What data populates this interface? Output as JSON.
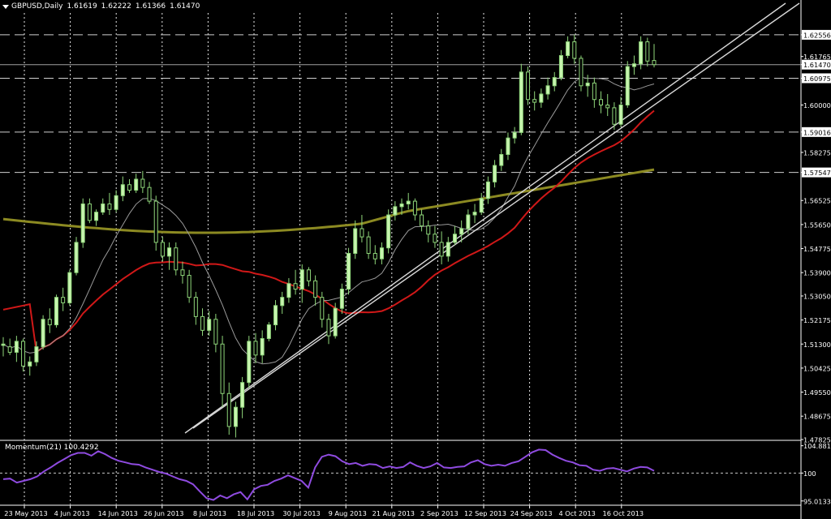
{
  "header": {
    "symbol": "GBPUSD,Daily",
    "open": "1.61619",
    "high": "1.62222",
    "low": "1.61366",
    "close": "1.61470"
  },
  "momentum_header": "Momentum(21) 100.4292",
  "colors": {
    "background": "#000000",
    "bull_candle": "#c8f5b0",
    "bear_candle": "#000000",
    "candle_outline": "#8fd67a",
    "wick": "#8fd67a",
    "ma_fast": "#9a9a9a",
    "ma_red": "#d01818",
    "ma_olive": "#8c8a22",
    "trendline": "#d8d8d8",
    "grid": "#ffffff",
    "momentum": "#8f4be0",
    "label_bg": "#ffffff",
    "label_text": "#000000"
  },
  "chart_data": {
    "type": "candlestick",
    "symbol": "GBPUSD",
    "timeframe": "Daily",
    "price_axis_ticks": [
      "1.62556",
      "1.61765",
      "1.61470",
      "1.60975",
      "1.60000",
      "1.59016",
      "1.58275",
      "1.57547",
      "1.56525",
      "1.55650",
      "1.54775",
      "1.53900",
      "1.53050",
      "1.52175",
      "1.51300",
      "1.50425",
      "1.49550",
      "1.48675",
      "1.47825"
    ],
    "highlight_labels": [
      "1.62556",
      "1.61470",
      "1.60975",
      "1.59016",
      "1.57547"
    ],
    "horizontal_levels": [
      1.62556,
      1.60975,
      1.59016,
      1.57547
    ],
    "current_price": 1.6147,
    "ylim": [
      1.47825,
      1.6335
    ],
    "x_axis_labels": [
      "23 May 2013",
      "4 Jun 2013",
      "14 Jun 2013",
      "26 Jun 2013",
      "8 Jul 2013",
      "18 Jul 2013",
      "30 Jul 2013",
      "9 Aug 2013",
      "21 Aug 2013",
      "2 Sep 2013",
      "12 Sep 2013",
      "24 Sep 2013",
      "4 Oct 2013",
      "16 Oct 2013"
    ],
    "candles": [
      [
        1.5125,
        1.5155,
        1.5085,
        1.513
      ],
      [
        1.512,
        1.515,
        1.509,
        1.51
      ],
      [
        1.51,
        1.516,
        1.5065,
        1.514
      ],
      [
        1.514,
        1.515,
        1.503,
        1.505
      ],
      [
        1.505,
        1.5085,
        1.5015,
        1.5065
      ],
      [
        1.5065,
        1.514,
        1.505,
        1.512
      ],
      [
        1.512,
        1.5235,
        1.511,
        1.522
      ],
      [
        1.522,
        1.526,
        1.517,
        1.52
      ],
      [
        1.52,
        1.531,
        1.519,
        1.53
      ],
      [
        1.53,
        1.5335,
        1.525,
        1.528
      ],
      [
        1.528,
        1.54,
        1.527,
        1.539
      ],
      [
        1.539,
        1.552,
        1.538,
        1.55
      ],
      [
        1.55,
        1.566,
        1.548,
        1.564
      ],
      [
        1.564,
        1.566,
        1.557,
        1.558
      ],
      [
        1.558,
        1.562,
        1.556,
        1.561
      ],
      [
        1.561,
        1.566,
        1.56,
        1.564
      ],
      [
        1.564,
        1.568,
        1.56,
        1.562
      ],
      [
        1.562,
        1.569,
        1.561,
        1.567
      ],
      [
        1.567,
        1.574,
        1.565,
        1.571
      ],
      [
        1.571,
        1.573,
        1.568,
        1.569
      ],
      [
        1.569,
        1.575,
        1.568,
        1.573
      ],
      [
        1.573,
        1.576,
        1.568,
        1.57
      ],
      [
        1.57,
        1.572,
        1.564,
        1.565
      ],
      [
        1.565,
        1.567,
        1.547,
        1.55
      ],
      [
        1.55,
        1.552,
        1.543,
        1.545
      ],
      [
        1.545,
        1.55,
        1.54,
        1.548
      ],
      [
        1.548,
        1.55,
        1.538,
        1.54
      ],
      [
        1.54,
        1.543,
        1.535,
        1.538
      ],
      [
        1.538,
        1.54,
        1.528,
        1.53
      ],
      [
        1.53,
        1.532,
        1.52,
        1.523
      ],
      [
        1.523,
        1.526,
        1.516,
        1.518
      ],
      [
        1.518,
        1.525,
        1.516,
        1.522
      ],
      [
        1.522,
        1.524,
        1.51,
        1.513
      ],
      [
        1.513,
        1.516,
        1.49,
        1.495
      ],
      [
        1.495,
        1.499,
        1.48,
        1.483
      ],
      [
        1.483,
        1.492,
        1.479,
        1.49
      ],
      [
        1.49,
        1.501,
        1.486,
        1.499
      ],
      [
        1.499,
        1.516,
        1.497,
        1.514
      ],
      [
        1.514,
        1.517,
        1.506,
        1.509
      ],
      [
        1.509,
        1.518,
        1.506,
        1.515
      ],
      [
        1.515,
        1.521,
        1.514,
        1.52
      ],
      [
        1.52,
        1.529,
        1.518,
        1.527
      ],
      [
        1.527,
        1.532,
        1.524,
        1.53
      ],
      [
        1.53,
        1.537,
        1.528,
        1.535
      ],
      [
        1.535,
        1.54,
        1.531,
        1.533
      ],
      [
        1.533,
        1.542,
        1.528,
        1.54
      ],
      [
        1.54,
        1.541,
        1.534,
        1.536
      ],
      [
        1.536,
        1.538,
        1.527,
        1.53
      ],
      [
        1.53,
        1.532,
        1.519,
        1.522
      ],
      [
        1.522,
        1.524,
        1.513,
        1.516
      ],
      [
        1.516,
        1.528,
        1.515,
        1.526
      ],
      [
        1.526,
        1.535,
        1.524,
        1.533
      ],
      [
        1.533,
        1.548,
        1.531,
        1.546
      ],
      [
        1.546,
        1.558,
        1.544,
        1.555
      ],
      [
        1.555,
        1.56,
        1.55,
        1.552
      ],
      [
        1.552,
        1.554,
        1.544,
        1.546
      ],
      [
        1.546,
        1.549,
        1.542,
        1.544
      ],
      [
        1.544,
        1.55,
        1.542,
        1.548
      ],
      [
        1.548,
        1.562,
        1.546,
        1.56
      ],
      [
        1.56,
        1.565,
        1.558,
        1.563
      ],
      [
        1.563,
        1.566,
        1.56,
        1.564
      ],
      [
        1.564,
        1.568,
        1.562,
        1.565
      ],
      [
        1.565,
        1.566,
        1.558,
        1.56
      ],
      [
        1.56,
        1.562,
        1.554,
        1.556
      ],
      [
        1.556,
        1.558,
        1.55,
        1.553
      ],
      [
        1.553,
        1.556,
        1.548,
        1.55
      ],
      [
        1.55,
        1.554,
        1.542,
        1.545
      ],
      [
        1.545,
        1.552,
        1.543,
        1.55
      ],
      [
        1.55,
        1.556,
        1.549,
        1.553
      ],
      [
        1.553,
        1.558,
        1.55,
        1.555
      ],
      [
        1.555,
        1.562,
        1.553,
        1.56
      ],
      [
        1.56,
        1.564,
        1.557,
        1.561
      ],
      [
        1.561,
        1.568,
        1.56,
        1.566
      ],
      [
        1.566,
        1.574,
        1.564,
        1.572
      ],
      [
        1.572,
        1.58,
        1.57,
        1.578
      ],
      [
        1.578,
        1.584,
        1.576,
        1.582
      ],
      [
        1.582,
        1.59,
        1.58,
        1.588
      ],
      [
        1.588,
        1.592,
        1.586,
        1.59
      ],
      [
        1.59,
        1.615,
        1.589,
        1.612
      ],
      [
        1.612,
        1.614,
        1.6,
        1.602
      ],
      [
        1.602,
        1.605,
        1.598,
        1.601
      ],
      [
        1.601,
        1.606,
        1.599,
        1.604
      ],
      [
        1.604,
        1.61,
        1.602,
        1.607
      ],
      [
        1.607,
        1.612,
        1.605,
        1.61
      ],
      [
        1.61,
        1.62,
        1.609,
        1.618
      ],
      [
        1.618,
        1.625,
        1.617,
        1.623
      ],
      [
        1.623,
        1.6256,
        1.615,
        1.617
      ],
      [
        1.617,
        1.618,
        1.605,
        1.607
      ],
      [
        1.607,
        1.611,
        1.603,
        1.608
      ],
      [
        1.608,
        1.61,
        1.599,
        1.602
      ],
      [
        1.602,
        1.605,
        1.597,
        1.6
      ],
      [
        1.6,
        1.604,
        1.596,
        1.599
      ],
      [
        1.599,
        1.601,
        1.591,
        1.593
      ],
      [
        1.593,
        1.603,
        1.592,
        1.6
      ],
      [
        1.6,
        1.616,
        1.599,
        1.614
      ],
      [
        1.614,
        1.618,
        1.611,
        1.615
      ],
      [
        1.615,
        1.625,
        1.613,
        1.623
      ],
      [
        1.623,
        1.6245,
        1.614,
        1.616
      ],
      [
        1.6162,
        1.6222,
        1.6137,
        1.6147
      ]
    ],
    "momentum": {
      "name": "Momentum(21)",
      "last": 100.4292,
      "axis_ticks": [
        "104.8813",
        "100",
        "95.0133"
      ],
      "ylim": [
        94.4,
        105.7
      ],
      "values": [
        98.9,
        99.0,
        98.3,
        98.6,
        98.9,
        99.4,
        100.3,
        101.0,
        101.8,
        102.5,
        103.2,
        103.6,
        103.6,
        103.1,
        103.9,
        103.4,
        102.7,
        102.2,
        101.9,
        101.6,
        101.5,
        101.0,
        100.6,
        100.2,
        99.9,
        99.4,
        98.9,
        98.6,
        98.0,
        96.7,
        95.5,
        95.2,
        96.0,
        95.5,
        96.2,
        96.6,
        95.3,
        97.1,
        97.7,
        97.9,
        98.6,
        99.0,
        99.6,
        99.1,
        98.6,
        97.4,
        101.0,
        102.9,
        103.3,
        103.0,
        102.1,
        101.6,
        101.8,
        101.3,
        101.6,
        101.5,
        100.9,
        101.2,
        100.9,
        101.1,
        101.9,
        101.3,
        100.9,
        101.2,
        101.8,
        101.0,
        100.9,
        101.1,
        101.2,
        101.9,
        102.3,
        101.6,
        101.3,
        101.5,
        101.3,
        101.8,
        102.1,
        102.9,
        103.7,
        104.2,
        104.1,
        103.3,
        102.7,
        102.2,
        101.9,
        101.4,
        101.3,
        100.6,
        100.4,
        100.8,
        100.9,
        100.6,
        100.3,
        100.8,
        101.1,
        101.0,
        100.4
      ]
    }
  }
}
